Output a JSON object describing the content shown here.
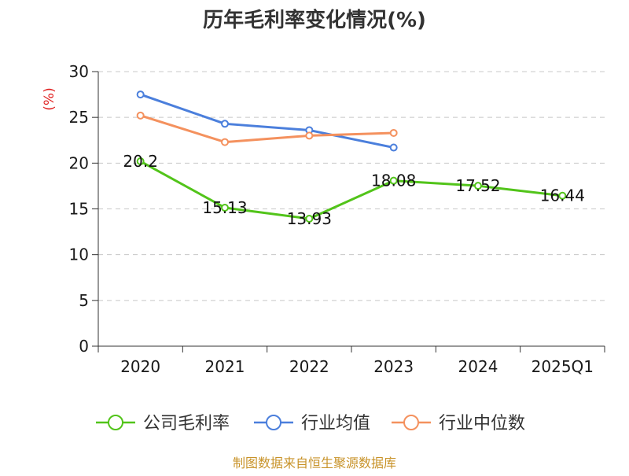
{
  "chart_data": {
    "type": "line",
    "title": "历年毛利率变化情况(%)",
    "ylabel": "(%)",
    "xlabel": "",
    "categories": [
      "2020",
      "2021",
      "2022",
      "2023",
      "2024",
      "2025Q1"
    ],
    "ylim": [
      0,
      30
    ],
    "yticks": [
      0,
      5,
      10,
      15,
      20,
      25,
      30
    ],
    "grid": true,
    "legend_position": "bottom",
    "series": [
      {
        "name": "公司毛利率",
        "color": "#52c41a",
        "values": [
          20.2,
          15.13,
          13.93,
          18.08,
          17.52,
          16.44
        ],
        "labels": [
          "20.2",
          "15.13",
          "13.93",
          "18.08",
          "17.52",
          "16.44"
        ]
      },
      {
        "name": "行业均值",
        "color": "#4b7fdc",
        "values": [
          27.5,
          24.3,
          23.6,
          21.7,
          null,
          null
        ]
      },
      {
        "name": "行业中位数",
        "color": "#f4915e",
        "values": [
          25.2,
          22.3,
          23.0,
          23.3,
          null,
          null
        ]
      }
    ]
  },
  "footer": {
    "source": "制图数据来自恒生聚源数据库"
  }
}
